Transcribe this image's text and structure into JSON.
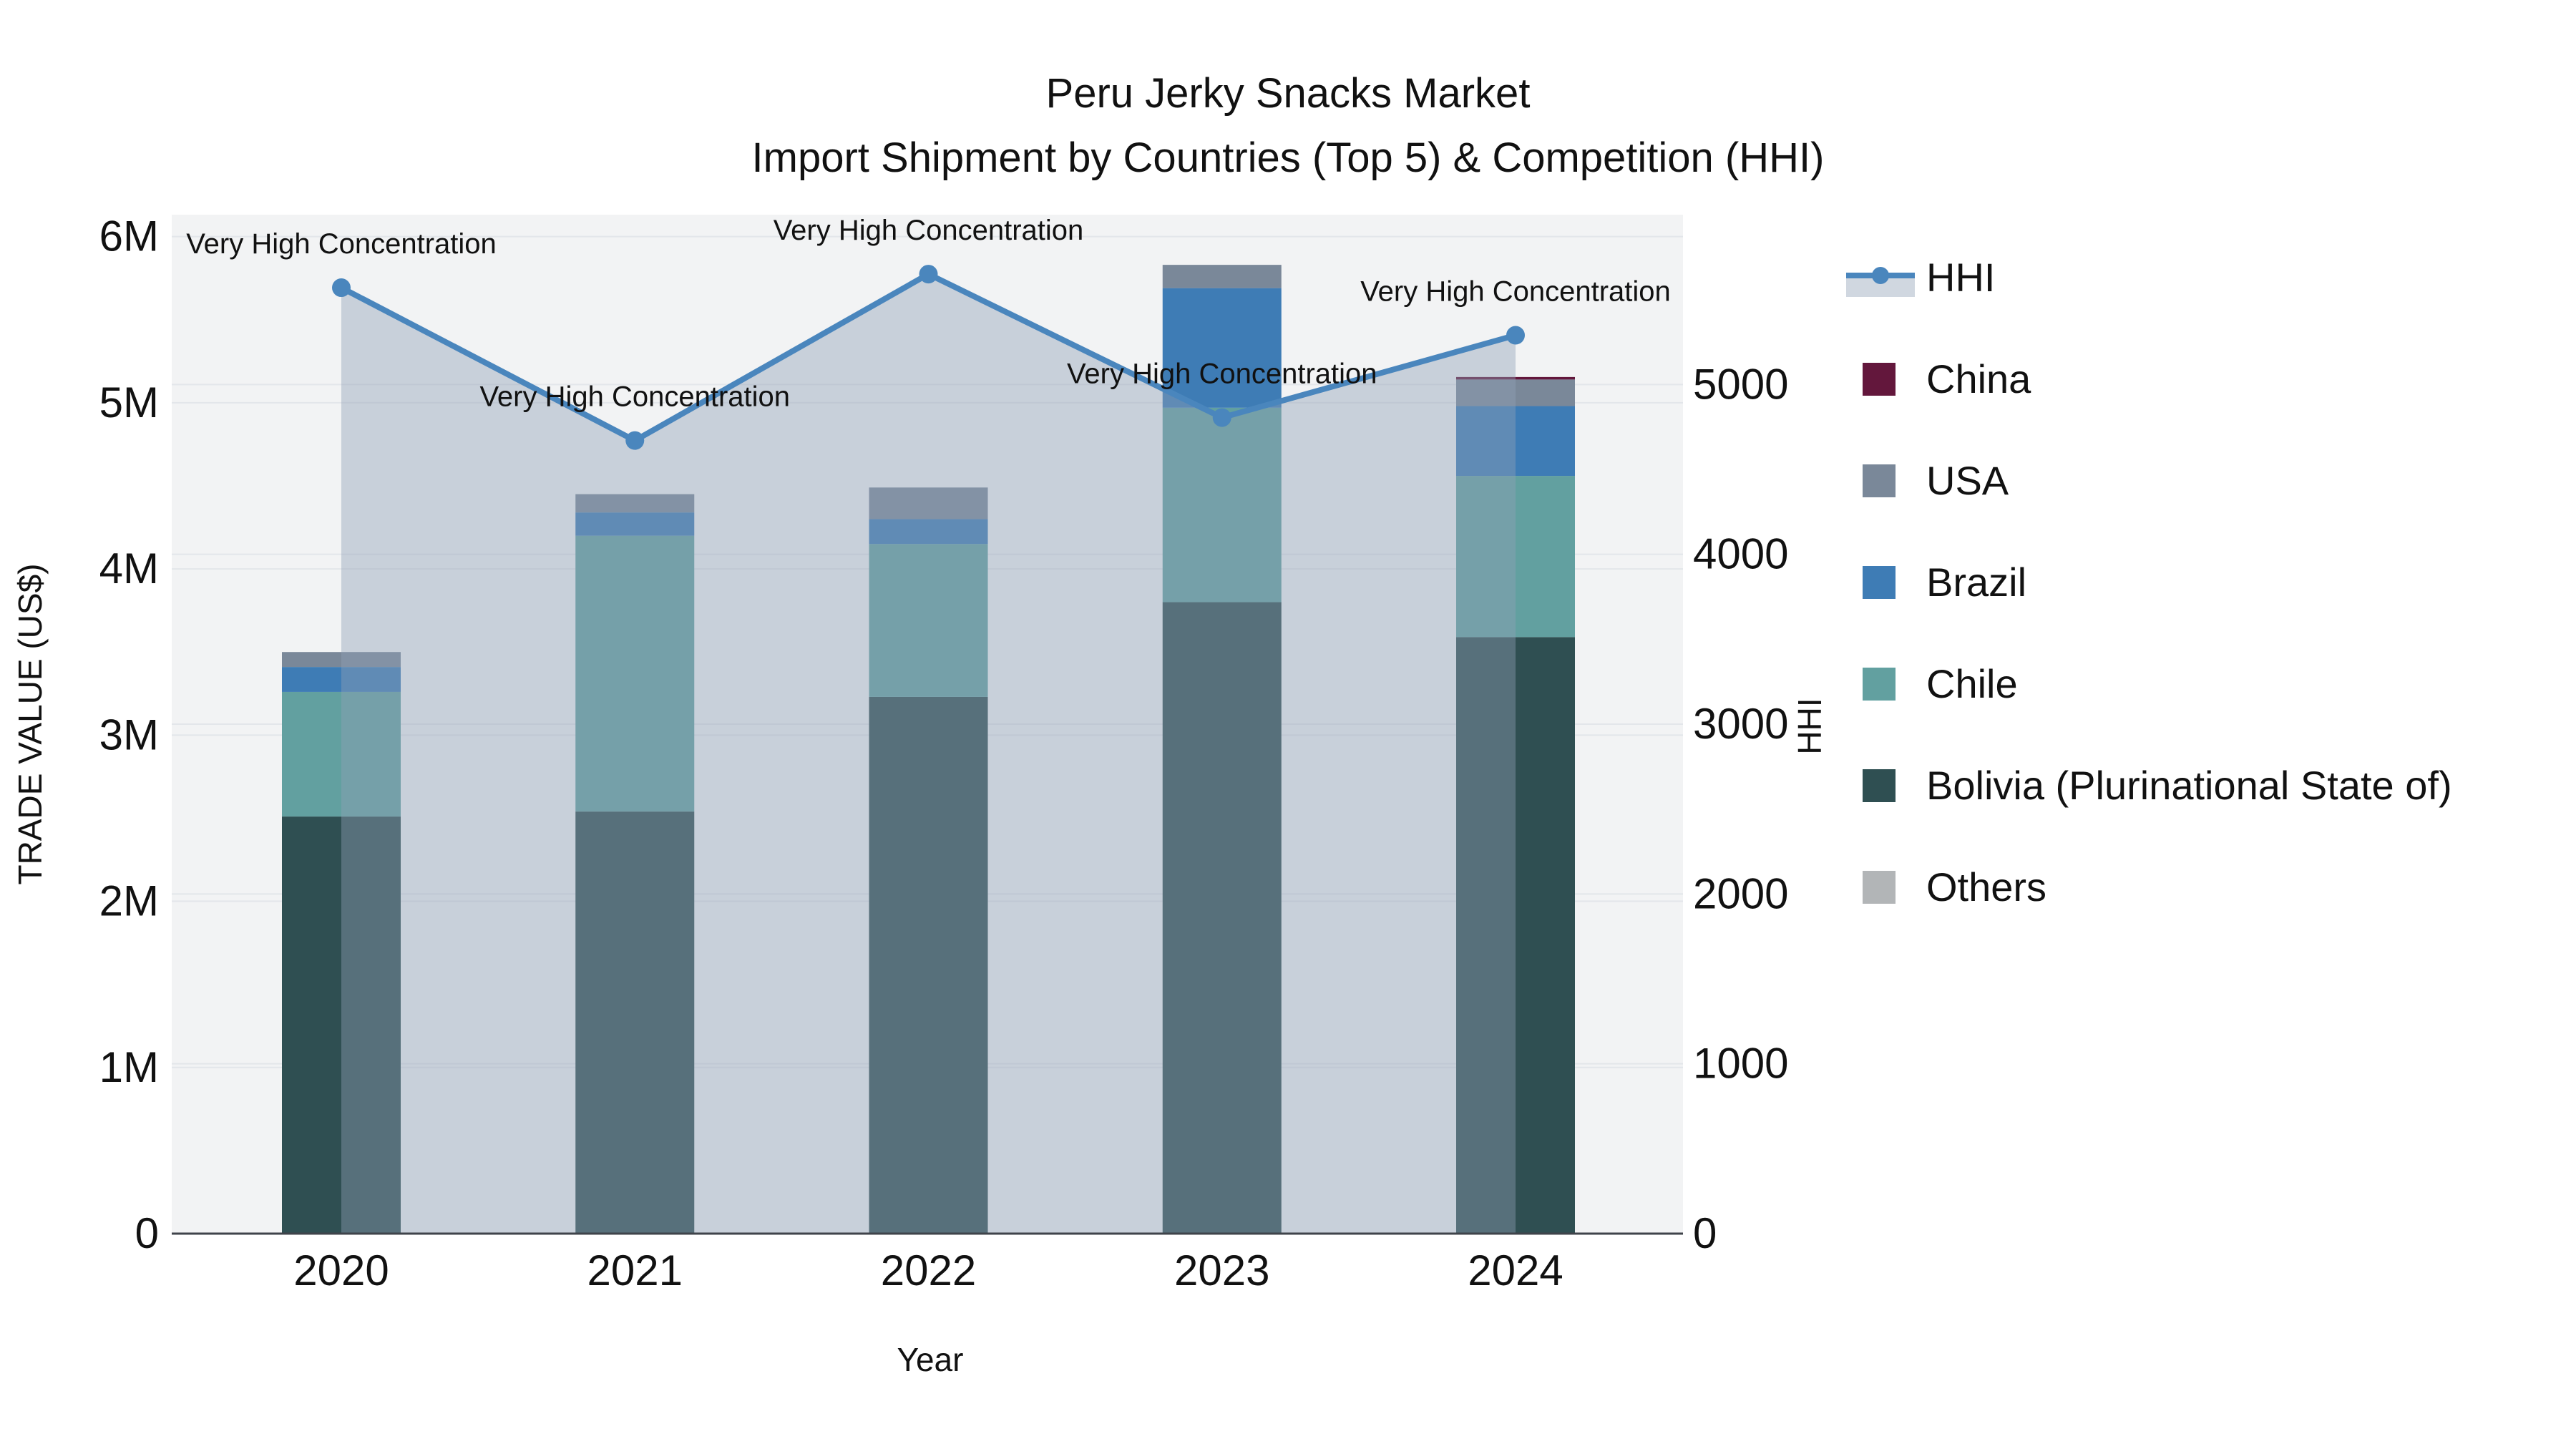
{
  "title": {
    "line1": "Peru Jerky Snacks Market",
    "line2": "Import Shipment by Countries (Top 5) & Competition (HHI)"
  },
  "axes": {
    "x": {
      "title": "Year",
      "tick_labels": [
        "2020",
        "2021",
        "2022",
        "2023",
        "2024"
      ]
    },
    "y_left": {
      "title": "TRADE VALUE (US$)",
      "tick_labels": [
        "0",
        "1M",
        "2M",
        "3M",
        "4M",
        "5M",
        "6M"
      ],
      "tick_values": [
        0,
        1000000,
        2000000,
        3000000,
        4000000,
        5000000,
        6000000
      ],
      "range": [
        0,
        6132000
      ]
    },
    "y_right": {
      "title": "HHI",
      "tick_labels": [
        "0",
        "1000",
        "2000",
        "3000",
        "4000",
        "5000"
      ],
      "tick_values": [
        0,
        1000,
        2000,
        3000,
        4000,
        5000
      ],
      "range": [
        0,
        6000
      ]
    }
  },
  "legend": {
    "items": [
      {
        "label": "HHI",
        "type": "line",
        "color": "#4a86bd"
      },
      {
        "label": "China",
        "type": "swatch",
        "color": "#63173c"
      },
      {
        "label": "USA",
        "type": "swatch",
        "color": "#7a8899"
      },
      {
        "label": "Brazil",
        "type": "swatch",
        "color": "#3e7cb5"
      },
      {
        "label": "Chile",
        "type": "swatch",
        "color": "#62a0a0"
      },
      {
        "label": "Bolivia (Plurinational State of)",
        "type": "swatch",
        "color": "#2f4f52"
      },
      {
        "label": "Others",
        "type": "swatch",
        "color": "#b2b5b7"
      }
    ]
  },
  "chart_data": {
    "type": "composite",
    "subtypes": [
      "stacked-bar",
      "line-area"
    ],
    "categories": [
      "2020",
      "2021",
      "2022",
      "2023",
      "2024"
    ],
    "bar_series": [
      {
        "name": "China",
        "color": "#63173c",
        "values": [
          0,
          0,
          0,
          0,
          15000
        ]
      },
      {
        "name": "USA",
        "color": "#7a8899",
        "values": [
          90000,
          110000,
          190000,
          140000,
          160000
        ]
      },
      {
        "name": "Brazil",
        "color": "#3e7cb5",
        "values": [
          150000,
          140000,
          150000,
          720000,
          420000
        ]
      },
      {
        "name": "Chile",
        "color": "#62a0a0",
        "values": [
          750000,
          1660000,
          920000,
          1170000,
          970000
        ]
      },
      {
        "name": "Bolivia (Plurinational State of)",
        "color": "#2f4f52",
        "values": [
          2510000,
          2540000,
          3230000,
          3800000,
          3590000
        ]
      },
      {
        "name": "Others",
        "color": "#b2b5b7",
        "values": [
          0,
          0,
          0,
          0,
          0
        ]
      }
    ],
    "stack_order_bottom_to_top": [
      "Others",
      "Bolivia (Plurinational State of)",
      "Chile",
      "Brazil",
      "USA",
      "China"
    ],
    "line_series": {
      "name": "HHI",
      "color": "#4a86bd",
      "fill_color": "rgba(143,160,181,0.42)",
      "axis": "y_right",
      "values": [
        5570,
        4670,
        5650,
        4805,
        5290
      ]
    },
    "annotations": [
      {
        "category": "2020",
        "text": "Very High Concentration"
      },
      {
        "category": "2021",
        "text": "Very High Concentration"
      },
      {
        "category": "2022",
        "text": "Very High Concentration"
      },
      {
        "category": "2023",
        "text": "Very High Concentration"
      },
      {
        "category": "2024",
        "text": "Very High Concentration"
      }
    ],
    "bar_totals_usd": [
      3500000,
      4450000,
      4490000,
      5830000,
      5155000
    ],
    "grid": true,
    "legend_position": "right"
  },
  "colors": {
    "plot_background": "#f2f3f4",
    "figure_background": "#ffffff",
    "gridline": "#e3e6ea",
    "zero_line": "#3f434a",
    "hhi_line": "#4a86bd",
    "hhi_area_fill": "rgba(143,160,181,0.42)",
    "text": "#111111"
  }
}
